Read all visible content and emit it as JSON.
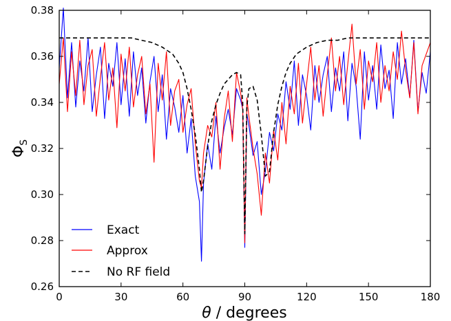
{
  "chart_data": {
    "type": "line",
    "xlabel_symbol": "θ",
    "xlabel_text": " / degrees",
    "ylabel_symbol": "Φ",
    "ylabel_sub": "S",
    "xlim": [
      0,
      180
    ],
    "ylim": [
      0.26,
      0.38
    ],
    "xticks": [
      0,
      30,
      60,
      90,
      120,
      150,
      180
    ],
    "xtick_labels": [
      "0",
      "30",
      "60",
      "90",
      "120",
      "150",
      "180"
    ],
    "yticks": [
      0.26,
      0.28,
      0.3,
      0.32,
      0.34,
      0.36,
      0.38
    ],
    "ytick_labels": [
      "0.26",
      "0.28",
      "0.30",
      "0.32",
      "0.34",
      "0.36",
      "0.38"
    ],
    "grid": false,
    "legend_position": "bottom-left",
    "colors": {
      "exact": "#0000ff",
      "approx": "#ff0000",
      "norf": "#000000"
    },
    "series": [
      {
        "name": "Exact",
        "style": "solid",
        "x": [
          0,
          2,
          4,
          6,
          8,
          10,
          12,
          14,
          16,
          18,
          20,
          22,
          24,
          26,
          28,
          30,
          32,
          34,
          36,
          38,
          40,
          42,
          44,
          46,
          48,
          50,
          52,
          54,
          56,
          58,
          60,
          62,
          64,
          66,
          68,
          69,
          70,
          72,
          74,
          76,
          78,
          80,
          82,
          84,
          86,
          88,
          89,
          90,
          91,
          92,
          94,
          96,
          98,
          100,
          102,
          104,
          106,
          108,
          110,
          112,
          114,
          116,
          118,
          120,
          122,
          124,
          126,
          128,
          130,
          132,
          134,
          136,
          138,
          140,
          142,
          144,
          146,
          148,
          150,
          152,
          154,
          156,
          158,
          160,
          162,
          164,
          166,
          168,
          170,
          172,
          174,
          176,
          178,
          180
        ],
        "y": [
          0.355,
          0.381,
          0.342,
          0.366,
          0.338,
          0.358,
          0.345,
          0.368,
          0.336,
          0.352,
          0.364,
          0.333,
          0.357,
          0.347,
          0.366,
          0.339,
          0.359,
          0.334,
          0.362,
          0.343,
          0.355,
          0.331,
          0.349,
          0.36,
          0.336,
          0.352,
          0.324,
          0.346,
          0.338,
          0.327,
          0.343,
          0.318,
          0.333,
          0.308,
          0.297,
          0.271,
          0.305,
          0.322,
          0.311,
          0.334,
          0.318,
          0.329,
          0.337,
          0.326,
          0.346,
          0.341,
          0.337,
          0.277,
          0.335,
          0.33,
          0.317,
          0.323,
          0.3,
          0.31,
          0.327,
          0.319,
          0.335,
          0.328,
          0.349,
          0.337,
          0.358,
          0.33,
          0.352,
          0.343,
          0.328,
          0.356,
          0.34,
          0.352,
          0.36,
          0.336,
          0.355,
          0.345,
          0.362,
          0.332,
          0.357,
          0.347,
          0.324,
          0.362,
          0.341,
          0.356,
          0.337,
          0.365,
          0.346,
          0.354,
          0.333,
          0.366,
          0.348,
          0.359,
          0.342,
          0.367,
          0.336,
          0.353,
          0.344,
          0.362
        ]
      },
      {
        "name": "Approx",
        "style": "solid",
        "x": [
          0,
          2,
          4,
          6,
          8,
          10,
          12,
          14,
          16,
          18,
          20,
          22,
          24,
          26,
          28,
          30,
          32,
          34,
          36,
          38,
          40,
          42,
          44,
          46,
          48,
          50,
          52,
          54,
          56,
          58,
          60,
          62,
          64,
          66,
          68,
          69,
          70,
          72,
          74,
          76,
          78,
          80,
          82,
          84,
          86,
          88,
          89,
          90,
          91,
          92,
          94,
          96,
          98,
          100,
          102,
          104,
          106,
          108,
          110,
          112,
          114,
          116,
          118,
          120,
          122,
          124,
          126,
          128,
          130,
          132,
          134,
          136,
          138,
          140,
          142,
          144,
          146,
          148,
          150,
          152,
          154,
          156,
          158,
          160,
          162,
          164,
          166,
          168,
          170,
          172,
          174,
          176,
          178,
          180
        ],
        "y": [
          0.348,
          0.368,
          0.336,
          0.362,
          0.343,
          0.367,
          0.339,
          0.356,
          0.363,
          0.334,
          0.351,
          0.366,
          0.341,
          0.355,
          0.329,
          0.361,
          0.345,
          0.364,
          0.338,
          0.352,
          0.36,
          0.335,
          0.348,
          0.314,
          0.357,
          0.341,
          0.362,
          0.33,
          0.345,
          0.35,
          0.327,
          0.339,
          0.346,
          0.322,
          0.306,
          0.303,
          0.318,
          0.33,
          0.325,
          0.34,
          0.311,
          0.333,
          0.345,
          0.323,
          0.353,
          0.344,
          0.337,
          0.279,
          0.342,
          0.334,
          0.32,
          0.309,
          0.291,
          0.318,
          0.305,
          0.328,
          0.315,
          0.34,
          0.322,
          0.347,
          0.335,
          0.357,
          0.331,
          0.348,
          0.364,
          0.341,
          0.356,
          0.334,
          0.352,
          0.368,
          0.345,
          0.36,
          0.339,
          0.357,
          0.374,
          0.348,
          0.363,
          0.337,
          0.358,
          0.349,
          0.366,
          0.34,
          0.356,
          0.345,
          0.362,
          0.35,
          0.371,
          0.354,
          0.342,
          0.366,
          0.335,
          0.356,
          0.361,
          0.366
        ]
      },
      {
        "name": "No RF field",
        "style": "dashed",
        "x": [
          0,
          10,
          20,
          30,
          35,
          40,
          45,
          50,
          55,
          58,
          60,
          62,
          64,
          66,
          68,
          69,
          70,
          72,
          74,
          76,
          78,
          80,
          82,
          84,
          86,
          88,
          89,
          90,
          91,
          92,
          94,
          96,
          98,
          100,
          102,
          104,
          106,
          108,
          110,
          112,
          115,
          120,
          125,
          130,
          135,
          140,
          150,
          160,
          170,
          180
        ],
        "y": [
          0.368,
          0.368,
          0.368,
          0.368,
          0.368,
          0.367,
          0.366,
          0.364,
          0.361,
          0.357,
          0.353,
          0.346,
          0.337,
          0.326,
          0.311,
          0.301,
          0.306,
          0.321,
          0.332,
          0.339,
          0.344,
          0.348,
          0.35,
          0.352,
          0.353,
          0.352,
          0.34,
          0.283,
          0.338,
          0.346,
          0.347,
          0.341,
          0.326,
          0.308,
          0.31,
          0.327,
          0.339,
          0.347,
          0.353,
          0.357,
          0.361,
          0.364,
          0.366,
          0.367,
          0.367,
          0.368,
          0.368,
          0.368,
          0.368,
          0.368
        ]
      }
    ]
  }
}
